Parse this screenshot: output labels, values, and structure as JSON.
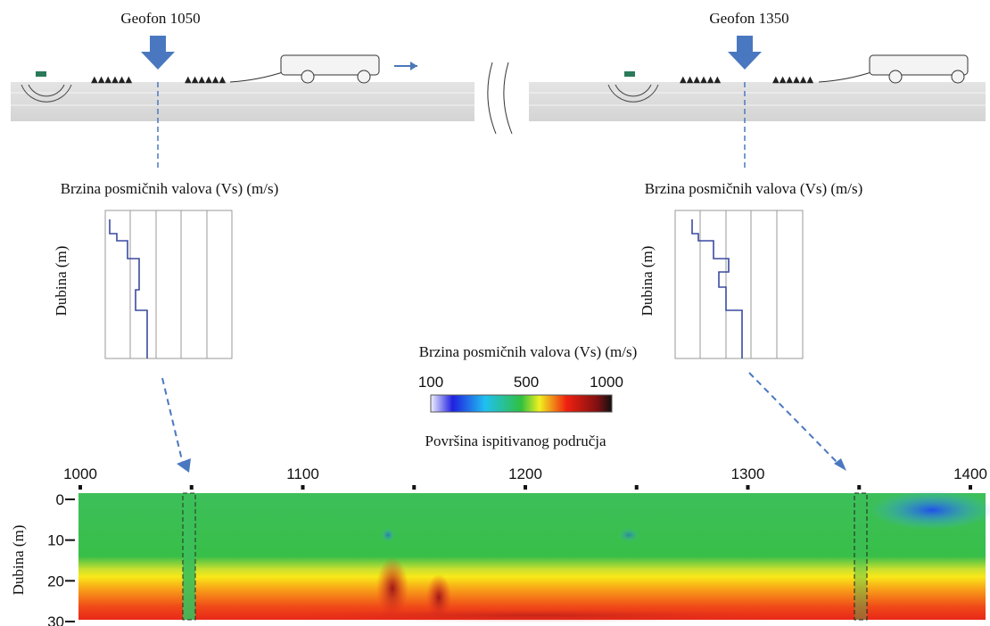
{
  "geophones": [
    {
      "label": "Geofon 1050"
    },
    {
      "label": "Geofon 1350"
    }
  ],
  "profiles": [
    {
      "title": "Brzina posmičnih valova (Vs) (m/s)",
      "y_label": "Dubina (m)"
    },
    {
      "title": "Brzina posmičnih valova (Vs) (m/s)",
      "y_label": "Dubina (m)"
    }
  ],
  "colorbar": {
    "title": "Brzina posmičnih valova (Vs) (m/s)",
    "ticks": [
      "100",
      "500",
      "1000"
    ]
  },
  "section": {
    "title": "Površina ispitivanog područja",
    "y_label": "Dubina (m)",
    "xticks": [
      1000,
      1100,
      1200,
      1300,
      1400
    ],
    "yticks": [
      0,
      10,
      20,
      30
    ]
  }
}
